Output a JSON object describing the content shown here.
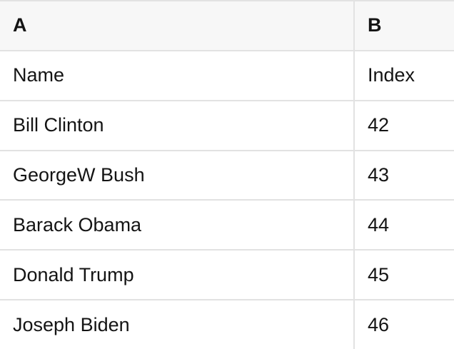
{
  "table": {
    "header": {
      "a": "A",
      "b": "B"
    },
    "rows": [
      [
        "Name",
        "Index"
      ],
      [
        "Bill Clinton",
        "42"
      ],
      [
        "GeorgeW Bush",
        "43"
      ],
      [
        "Barack Obama",
        "44"
      ],
      [
        "Donald Trump",
        "45"
      ],
      [
        "Joseph Biden",
        "46"
      ]
    ],
    "colors": {
      "header_background": "#f7f7f7",
      "row_background": "#ffffff",
      "border": "#e2e2e2",
      "text": "#141414"
    }
  }
}
